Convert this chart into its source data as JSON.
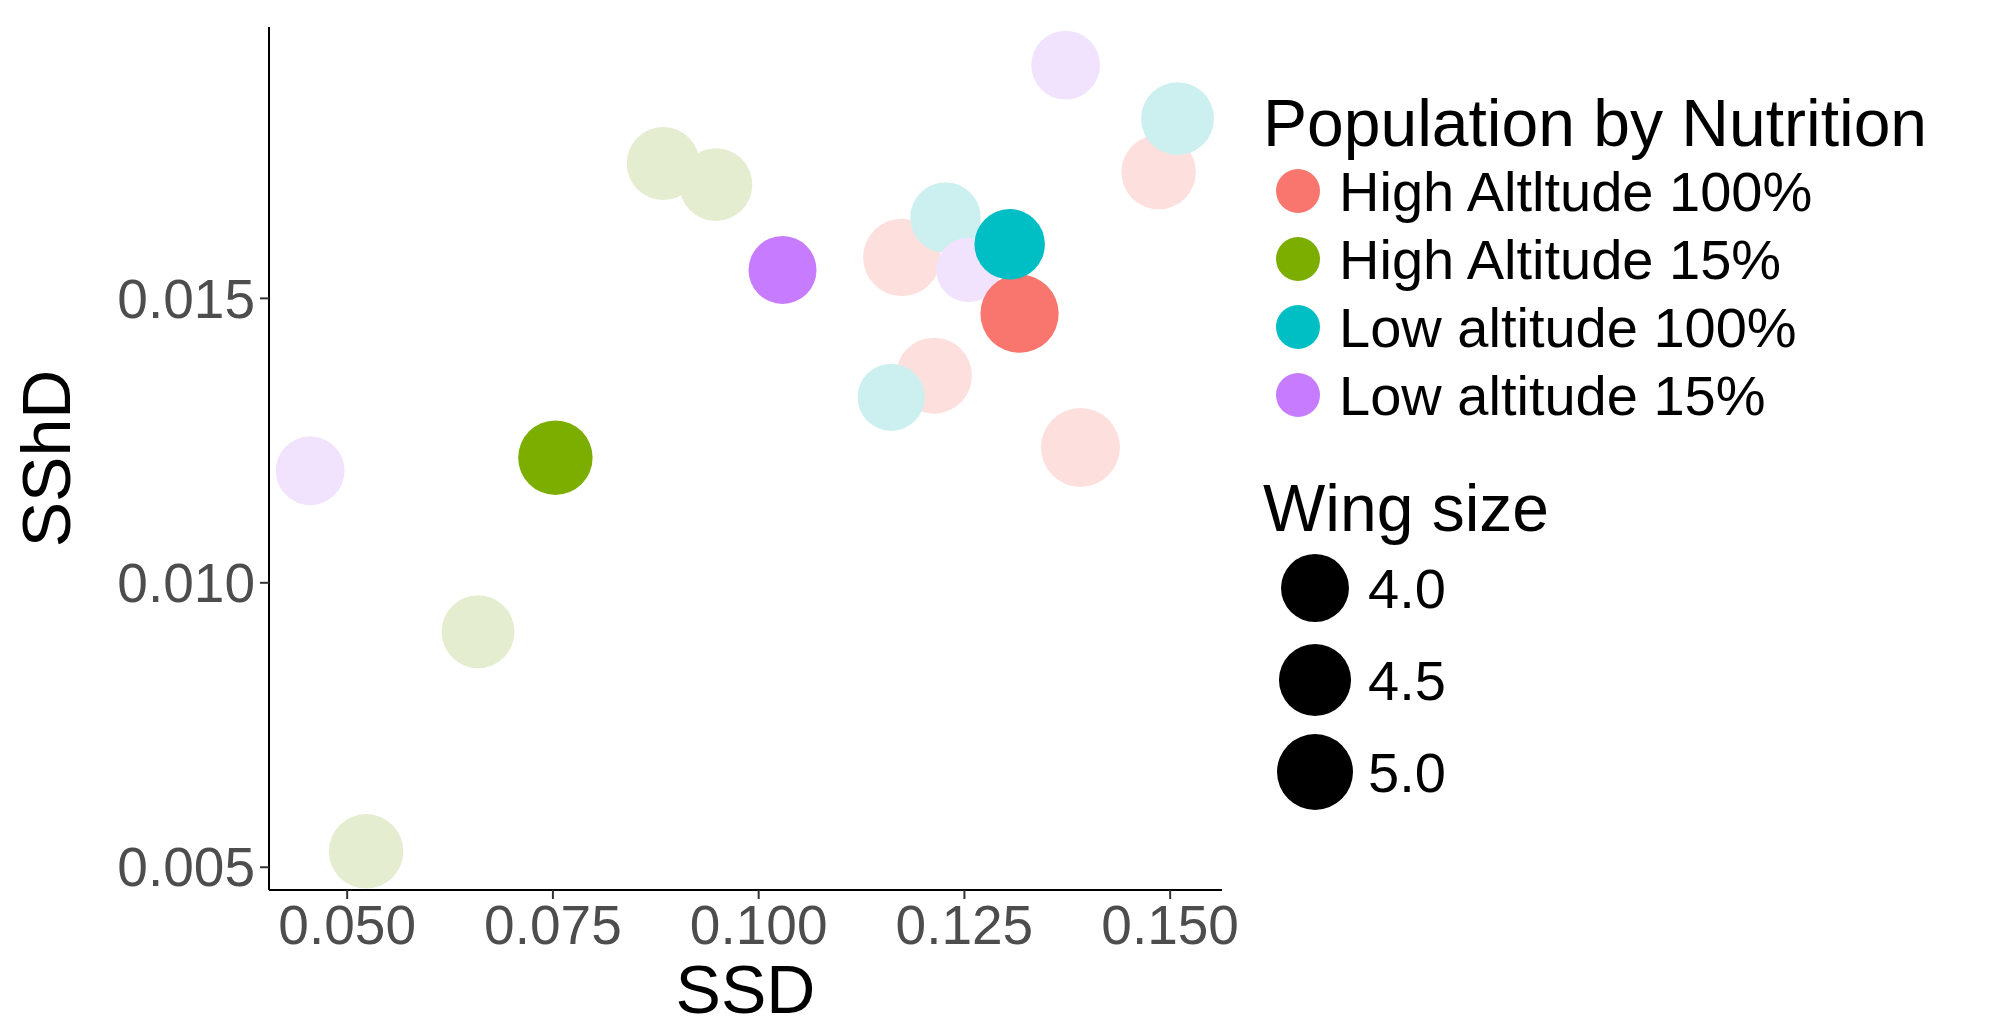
{
  "chart_data": {
    "type": "bubble",
    "xlabel": "SSD",
    "ylabel": "SShD",
    "legend_title": "Population by Nutrition",
    "legend": "right",
    "grid": false,
    "marker": "circle",
    "xlim": [
      0.0405,
      0.1563
    ],
    "ylim": [
      0.0046,
      0.01977
    ],
    "xticks": [
      {
        "value": 0.05,
        "label": "0.050"
      },
      {
        "value": 0.075,
        "label": "0.075"
      },
      {
        "value": 0.1,
        "label": "0.100"
      },
      {
        "value": 0.125,
        "label": "0.125"
      },
      {
        "value": 0.15,
        "label": "0.150"
      }
    ],
    "yticks": [
      {
        "value": 0.005,
        "label": "0.005"
      },
      {
        "value": 0.01,
        "label": "0.010"
      },
      {
        "value": 0.015,
        "label": "0.015"
      }
    ],
    "size_legend": [
      {
        "value": 4,
        "label": "4.0"
      },
      {
        "value": 4.5,
        "label": "4.5"
      },
      {
        "value": 5,
        "label": "5.0"
      }
    ],
    "annotations": [
      "Wing size"
    ],
    "series": [
      {
        "color": "#fde0de",
        "x": [
          0.1174,
          0.1213,
          0.1391,
          0.1486
        ],
        "values": [
          0.01572,
          0.01364,
          0.01238,
          0.01722
        ],
        "sizes": [
          5.2,
          5.0,
          5.4,
          4.8
        ]
      },
      {
        "color": "#e4edd0",
        "x": [
          0.0884,
          0.0948,
          0.0659,
          0.0523
        ],
        "values": [
          0.01737,
          0.017,
          0.00914,
          0.00528
        ],
        "sizes": [
          4.6,
          4.6,
          4.6,
          4.8
        ]
      },
      {
        "color": "#ccf0f0",
        "x": [
          0.1227,
          0.1161,
          0.1509
        ],
        "values": [
          0.01642,
          0.01326,
          0.01816
        ],
        "sizes": [
          4.3,
          3.9,
          4.6
        ]
      },
      {
        "color": "#f1e3fd",
        "x": [
          0.0455,
          0.1373,
          0.1255
        ],
        "values": [
          0.01197,
          0.0191,
          0.0155
        ],
        "sizes": [
          4.1,
          4.1,
          3.6
        ]
      },
      {
        "name": "High Altltude 100%",
        "color": "#f8766d",
        "x": [
          0.1317
        ],
        "values": [
          0.01473
        ],
        "sizes": [
          5.3
        ]
      },
      {
        "name": "High Altitude 15%",
        "color": "#7cae00",
        "x": [
          0.0753
        ],
        "values": [
          0.0122
        ],
        "sizes": [
          4.8
        ]
      },
      {
        "name": "Low altitude 100%",
        "color": "#00bfc4",
        "x": [
          0.1305
        ],
        "values": [
          0.01595
        ],
        "sizes": [
          4.3
        ]
      },
      {
        "name": "Low altitude 15%",
        "color": "#c77cff",
        "x": [
          0.1029
        ],
        "values": [
          0.0155
        ],
        "sizes": [
          4.0
        ]
      }
    ]
  }
}
